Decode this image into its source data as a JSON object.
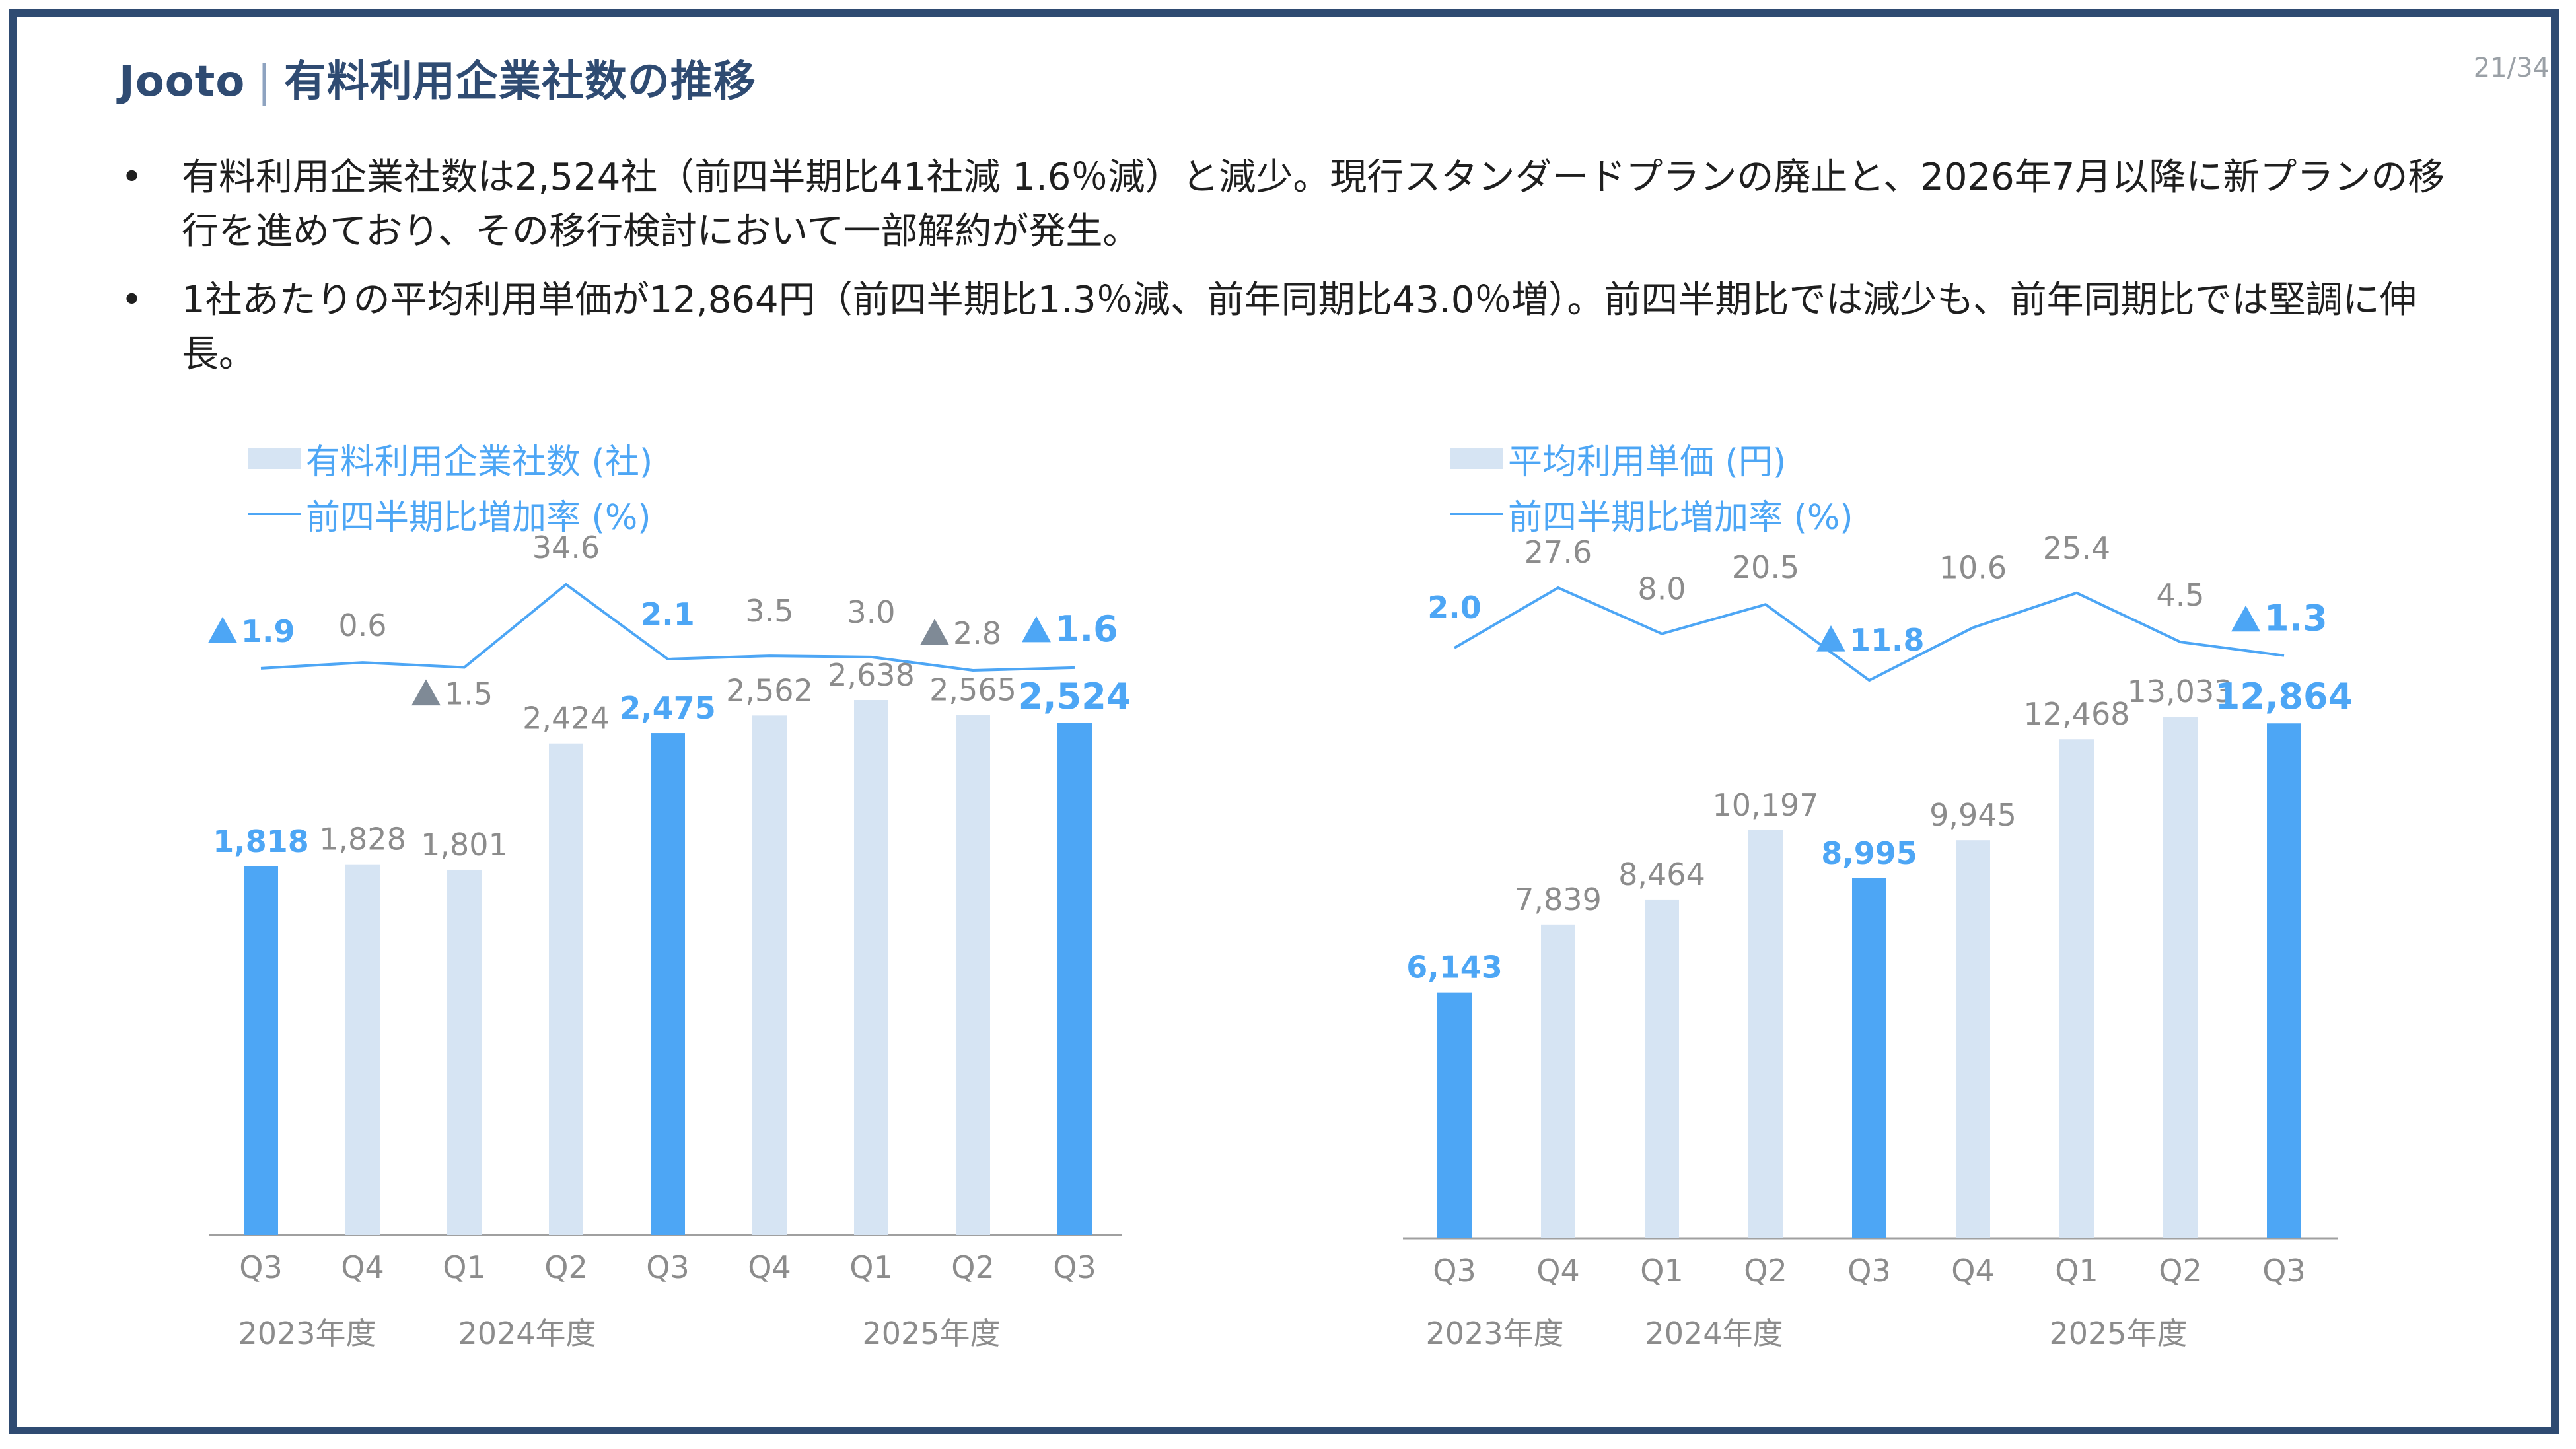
{
  "header": {
    "brand": "Jooto",
    "separator": "|",
    "title": "有料利用企業社数の推移",
    "page": "21/34"
  },
  "bullets": [
    {
      "marker": "•",
      "text": "有料利用企業社数は2,524社（前四半期比41社減 1.6％減）と減少。現行スタンダードプランの廃止と、2026年7月以降に新プランの移行を進めており、その移行検討において一部解約が発生。"
    },
    {
      "marker": "•",
      "text": "1社あたりの平均利用単価が12,864円（前四半期比1.3％減、前年同期比43.0％増）。前四半期比では減少も、前年同期比では堅調に伸長。"
    }
  ],
  "colors": {
    "bar_highlight": "#4da6f5",
    "bar_normal": "#d6e4f3",
    "line": "#4da6f5",
    "label_highlight": "#4da6f5",
    "label_normal": "#8c8c8c",
    "marker_gray": "#7f8a96",
    "axis": "#a0a0a0"
  },
  "chart_data": [
    {
      "type": "bar",
      "title": "",
      "legend": {
        "bar_label": "有料利用企業社数 (社)",
        "line_label": "前四半期比増加率 (%)"
      },
      "categories": [
        "Q3",
        "Q4",
        "Q1",
        "Q2",
        "Q3",
        "Q4",
        "Q1",
        "Q2",
        "Q3"
      ],
      "fiscal_year_labels": [
        "2023年度",
        "2024年度",
        "2025年度"
      ],
      "series": [
        {
          "name": "有料利用企業社数 (社)",
          "type": "bar",
          "values": [
            1818,
            1828,
            1801,
            2424,
            2475,
            2562,
            2638,
            2565,
            2524
          ],
          "labels": [
            "1,818",
            "1,828",
            "1,801",
            "2,424",
            "2,475",
            "2,562",
            "2,638",
            "2,565",
            "2,524"
          ],
          "highlight": [
            true,
            false,
            false,
            false,
            true,
            false,
            false,
            false,
            true
          ]
        },
        {
          "name": "前四半期比増加率 (%)",
          "type": "line",
          "values": [
            -1.9,
            0.6,
            -1.5,
            34.6,
            2.1,
            3.5,
            3.0,
            -2.8,
            -1.6
          ],
          "labels": [
            "1.9",
            "0.6",
            "1.5",
            "34.6",
            "2.1",
            "3.5",
            "3.0",
            "2.8",
            "1.6"
          ],
          "decrease_marker": [
            true,
            false,
            true,
            false,
            false,
            false,
            false,
            true,
            true
          ],
          "highlight": [
            true,
            false,
            false,
            false,
            true,
            false,
            false,
            false,
            true
          ]
        }
      ],
      "ylim": [
        0,
        3000
      ]
    },
    {
      "type": "bar",
      "title": "",
      "legend": {
        "bar_label": "平均利用単価 (円)",
        "line_label": "前四半期比増加率 (%)"
      },
      "categories": [
        "Q3",
        "Q4",
        "Q1",
        "Q2",
        "Q3",
        "Q4",
        "Q1",
        "Q2",
        "Q3"
      ],
      "fiscal_year_labels": [
        "2023年度",
        "2024年度",
        "2025年度"
      ],
      "series": [
        {
          "name": "平均利用単価 (円)",
          "type": "bar",
          "values": [
            6143,
            7839,
            8464,
            10197,
            8995,
            9945,
            12468,
            13033,
            12864
          ],
          "labels": [
            "6,143",
            "7,839",
            "8,464",
            "10,197",
            "8,995",
            "9,945",
            "12,468",
            "13,033",
            "12,864"
          ],
          "highlight": [
            true,
            false,
            false,
            false,
            true,
            false,
            false,
            false,
            true
          ]
        },
        {
          "name": "前四半期比増加率 (%)",
          "type": "line",
          "values": [
            2.0,
            27.6,
            8.0,
            20.5,
            -11.8,
            10.6,
            25.4,
            4.5,
            -1.3
          ],
          "labels": [
            "2.0",
            "27.6",
            "8.0",
            "20.5",
            "11.8",
            "10.6",
            "25.4",
            "4.5",
            "1.3"
          ],
          "decrease_marker": [
            false,
            false,
            false,
            false,
            true,
            false,
            false,
            false,
            true
          ],
          "highlight": [
            true,
            false,
            false,
            false,
            true,
            false,
            false,
            false,
            true
          ]
        }
      ],
      "ylim": [
        0,
        15000
      ]
    }
  ]
}
